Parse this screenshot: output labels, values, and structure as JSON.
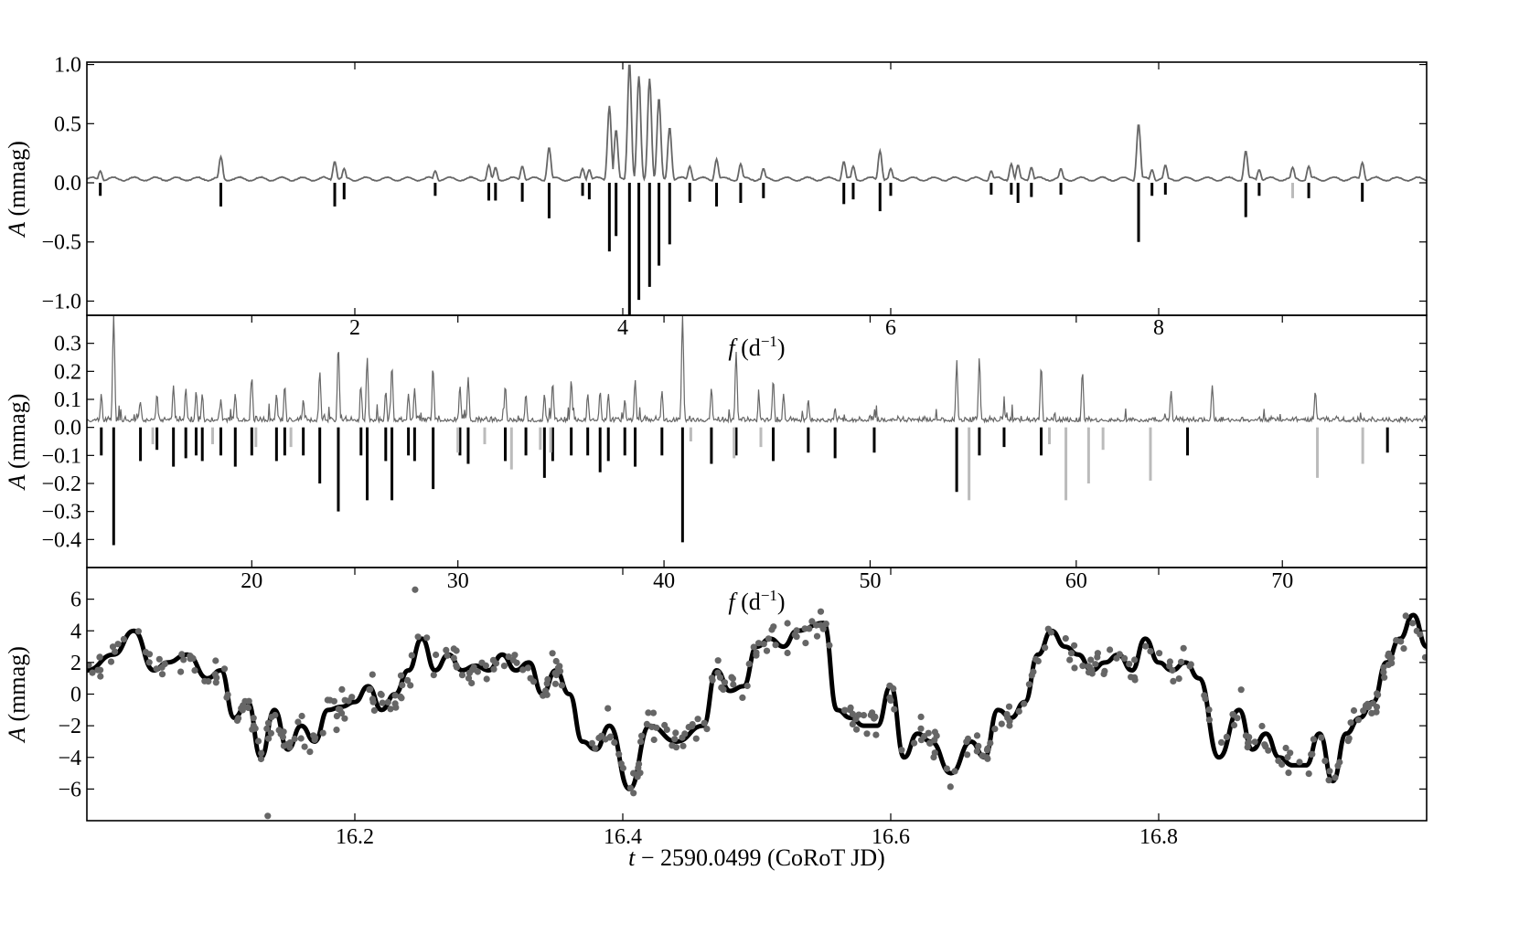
{
  "chart_data": [
    {
      "type": "line",
      "panel": "top",
      "xlabel_math": "f",
      "xlabel_rest": " (d",
      "xlabel_sup": "−1",
      "xlabel_close": ")",
      "ylabel_math": "A",
      "ylabel_rest": " (mmag)",
      "xlim": [
        0,
        10
      ],
      "ylim": [
        -1.12,
        1.02
      ],
      "xticks": [
        2,
        4,
        6,
        8
      ],
      "xtick_labels": [
        "2",
        "4",
        "6",
        "8"
      ],
      "yticks": [
        -1.0,
        -0.5,
        0.0,
        0.5,
        1.0
      ],
      "ytick_labels": [
        "−1.0",
        "−0.5",
        "0.0",
        "0.5",
        "1.0"
      ],
      "series": [
        {
          "kind": "spectrum",
          "color": "#666666",
          "peaks": [
            [
              0.1,
              0.1
            ],
            [
              1.0,
              0.22
            ],
            [
              1.85,
              0.18
            ],
            [
              1.92,
              0.12
            ],
            [
              2.6,
              0.1
            ],
            [
              3.0,
              0.15
            ],
            [
              3.05,
              0.13
            ],
            [
              3.25,
              0.14
            ],
            [
              3.45,
              0.3
            ],
            [
              3.7,
              0.12
            ],
            [
              3.75,
              0.11
            ],
            [
              3.9,
              0.65
            ],
            [
              3.95,
              0.45
            ],
            [
              4.05,
              1.02
            ],
            [
              4.12,
              0.9
            ],
            [
              4.2,
              0.88
            ],
            [
              4.27,
              0.72
            ],
            [
              4.35,
              0.47
            ],
            [
              4.5,
              0.14
            ],
            [
              4.7,
              0.2
            ],
            [
              4.88,
              0.16
            ],
            [
              5.05,
              0.12
            ],
            [
              5.65,
              0.18
            ],
            [
              5.72,
              0.14
            ],
            [
              5.92,
              0.27
            ],
            [
              6.0,
              0.12
            ],
            [
              6.75,
              0.1
            ],
            [
              6.9,
              0.16
            ],
            [
              6.95,
              0.15
            ],
            [
              7.05,
              0.13
            ],
            [
              7.27,
              0.12
            ],
            [
              7.85,
              0.5
            ],
            [
              7.95,
              0.11
            ],
            [
              8.05,
              0.15
            ],
            [
              8.65,
              0.27
            ],
            [
              8.75,
              0.11
            ],
            [
              9.0,
              0.13
            ],
            [
              9.12,
              0.14
            ],
            [
              9.52,
              0.17
            ]
          ]
        },
        {
          "kind": "stems",
          "color": "#000000",
          "x": [
            0.1,
            1.0,
            1.85,
            1.92,
            2.6,
            3.0,
            3.05,
            3.25,
            3.45,
            3.7,
            3.75,
            3.9,
            3.95,
            4.05,
            4.12,
            4.2,
            4.27,
            4.35,
            4.5,
            4.7,
            4.88,
            5.05,
            5.65,
            5.72,
            5.92,
            6.0,
            6.75,
            6.9,
            6.95,
            7.05,
            7.27,
            7.85,
            7.95,
            8.05,
            8.65,
            8.75,
            9.12,
            9.52
          ],
          "y": [
            -0.11,
            -0.2,
            -0.2,
            -0.14,
            -0.11,
            -0.15,
            -0.15,
            -0.16,
            -0.3,
            -0.11,
            -0.14,
            -0.58,
            -0.45,
            -1.12,
            -0.99,
            -0.88,
            -0.7,
            -0.52,
            -0.16,
            -0.2,
            -0.17,
            -0.13,
            -0.18,
            -0.14,
            -0.24,
            -0.11,
            -0.1,
            -0.1,
            -0.17,
            -0.12,
            -0.1,
            -0.5,
            -0.11,
            -0.1,
            -0.29,
            -0.11,
            -0.13,
            -0.16
          ]
        },
        {
          "kind": "stems",
          "color": "#bbbbbb",
          "x": [
            9.0
          ],
          "y": [
            -0.13
          ]
        }
      ]
    },
    {
      "type": "line",
      "panel": "middle",
      "xlabel_math": "f",
      "xlabel_rest": " (d",
      "xlabel_sup": "−1",
      "xlabel_close": ")",
      "ylabel_math": "A",
      "ylabel_rest": " (mmag)",
      "xlim": [
        12,
        77
      ],
      "ylim": [
        -0.5,
        0.4
      ],
      "xticks": [
        20,
        30,
        40,
        50,
        60,
        70
      ],
      "xtick_labels": [
        "20",
        "30",
        "40",
        "50",
        "60",
        "70"
      ],
      "yticks": [
        -0.4,
        -0.3,
        -0.2,
        -0.1,
        0.0,
        0.1,
        0.2,
        0.3
      ],
      "ytick_labels": [
        "−0.4",
        "−0.3",
        "−0.2",
        "−0.1",
        "0.0",
        "0.1",
        "0.2",
        "0.3"
      ],
      "series": [
        {
          "kind": "spectrum",
          "color": "#666666",
          "peaks": [
            [
              12.7,
              0.12
            ],
            [
              13.3,
              0.4
            ],
            [
              14.6,
              0.09
            ],
            [
              15.4,
              0.12
            ],
            [
              16.2,
              0.15
            ],
            [
              16.8,
              0.14
            ],
            [
              17.3,
              0.13
            ],
            [
              17.6,
              0.12
            ],
            [
              18.5,
              0.1
            ],
            [
              19.2,
              0.12
            ],
            [
              20.0,
              0.18
            ],
            [
              21.2,
              0.12
            ],
            [
              21.6,
              0.15
            ],
            [
              22.5,
              0.1
            ],
            [
              23.3,
              0.2
            ],
            [
              24.2,
              0.29
            ],
            [
              25.3,
              0.14
            ],
            [
              25.6,
              0.25
            ],
            [
              26.5,
              0.13
            ],
            [
              26.8,
              0.22
            ],
            [
              27.6,
              0.12
            ],
            [
              27.9,
              0.14
            ],
            [
              28.8,
              0.2
            ],
            [
              30.1,
              0.15
            ],
            [
              30.5,
              0.18
            ],
            [
              32.3,
              0.15
            ],
            [
              33.3,
              0.12
            ],
            [
              34.2,
              0.12
            ],
            [
              34.6,
              0.16
            ],
            [
              35.5,
              0.17
            ],
            [
              36.3,
              0.12
            ],
            [
              36.9,
              0.13
            ],
            [
              37.3,
              0.12
            ],
            [
              38.1,
              0.1
            ],
            [
              38.6,
              0.17
            ],
            [
              39.9,
              0.13
            ],
            [
              40.9,
              0.4
            ],
            [
              42.3,
              0.14
            ],
            [
              43.5,
              0.27
            ],
            [
              44.6,
              0.11
            ],
            [
              45.3,
              0.17
            ],
            [
              45.8,
              0.12
            ],
            [
              47.0,
              0.1
            ],
            [
              48.3,
              0.07
            ],
            [
              54.2,
              0.22
            ],
            [
              55.3,
              0.24
            ],
            [
              56.5,
              0.07
            ],
            [
              58.3,
              0.22
            ],
            [
              60.3,
              0.2
            ],
            [
              64.6,
              0.13
            ],
            [
              66.6,
              0.15
            ],
            [
              71.6,
              0.13
            ]
          ]
        },
        {
          "kind": "stems",
          "color": "#000000",
          "x": [
            12.7,
            13.3,
            14.6,
            15.4,
            16.2,
            16.8,
            17.3,
            17.6,
            18.5,
            19.2,
            20.0,
            21.2,
            21.6,
            22.5,
            23.3,
            24.2,
            25.3,
            25.6,
            26.5,
            26.8,
            27.6,
            27.9,
            28.8,
            30.1,
            30.5,
            32.3,
            33.3,
            34.2,
            34.6,
            35.5,
            36.3,
            36.9,
            37.3,
            38.1,
            38.6,
            39.9,
            40.9,
            42.3,
            43.5,
            45.3,
            47.0,
            48.3,
            50.2,
            54.2,
            55.3,
            56.5,
            58.3,
            65.4,
            75.1
          ],
          "y": [
            -0.1,
            -0.42,
            -0.12,
            -0.08,
            -0.14,
            -0.11,
            -0.1,
            -0.12,
            -0.1,
            -0.14,
            -0.1,
            -0.12,
            -0.1,
            -0.1,
            -0.2,
            -0.3,
            -0.1,
            -0.26,
            -0.12,
            -0.26,
            -0.1,
            -0.12,
            -0.22,
            -0.1,
            -0.13,
            -0.12,
            -0.1,
            -0.18,
            -0.12,
            -0.1,
            -0.1,
            -0.16,
            -0.12,
            -0.1,
            -0.14,
            -0.1,
            -0.41,
            -0.13,
            -0.1,
            -0.12,
            -0.09,
            -0.11,
            -0.09,
            -0.23,
            -0.1,
            -0.07,
            -0.1,
            -0.1,
            -0.09
          ]
        },
        {
          "kind": "stems",
          "color": "#bbbbbb",
          "x": [
            15.2,
            18.1,
            20.2,
            21.9,
            30.0,
            31.3,
            32.6,
            34.0,
            34.5,
            41.3,
            43.4,
            44.7,
            54.8,
            58.7,
            59.5,
            60.6,
            61.3,
            63.6,
            71.7,
            73.9
          ],
          "y": [
            -0.06,
            -0.06,
            -0.07,
            -0.07,
            -0.09,
            -0.06,
            -0.15,
            -0.08,
            -0.09,
            -0.05,
            -0.11,
            -0.07,
            -0.26,
            -0.06,
            -0.26,
            -0.2,
            -0.08,
            -0.19,
            -0.18,
            -0.13
          ]
        }
      ]
    },
    {
      "type": "scatter",
      "panel": "bottom",
      "xlabel_math": "t",
      "xlabel_rest": " − 2590.0499 (CoRoT JD)",
      "ylabel_math": "A",
      "ylabel_rest": " (mmag)",
      "xlim": [
        16.0,
        17.0
      ],
      "ylim": [
        -8,
        8
      ],
      "xticks": [
        16.2,
        16.4,
        16.6,
        16.8
      ],
      "xtick_labels": [
        "16.2",
        "16.4",
        "16.6",
        "16.8"
      ],
      "yticks": [
        -6,
        -4,
        -2,
        0,
        2,
        4,
        6
      ],
      "ytick_labels": [
        "−6",
        "−4",
        "−2",
        "0",
        "2",
        "4",
        "6"
      ],
      "series": [
        {
          "kind": "model",
          "color": "#000000",
          "x": [
            16.0,
            16.02,
            16.035,
            16.05,
            16.06,
            16.075,
            16.09,
            16.1,
            16.11,
            16.12,
            16.13,
            16.14,
            16.15,
            16.16,
            16.17,
            16.18,
            16.19,
            16.2,
            16.21,
            16.22,
            16.23,
            16.24,
            16.25,
            16.26,
            16.27,
            16.28,
            16.29,
            16.3,
            16.31,
            16.32,
            16.33,
            16.34,
            16.35,
            16.36,
            16.37,
            16.38,
            16.39,
            16.405,
            16.42,
            16.44,
            16.46,
            16.47,
            16.48,
            16.49,
            16.5,
            16.51,
            16.52,
            16.53,
            16.55,
            16.56,
            16.57,
            16.58,
            16.59,
            16.6,
            16.61,
            16.62,
            16.63,
            16.645,
            16.66,
            16.67,
            16.68,
            16.69,
            16.7,
            16.71,
            16.72,
            16.73,
            16.74,
            16.75,
            16.76,
            16.77,
            16.78,
            16.79,
            16.8,
            16.81,
            16.82,
            16.83,
            16.845,
            16.86,
            16.87,
            16.88,
            16.89,
            16.9,
            16.91,
            16.92,
            16.93,
            16.94,
            16.95,
            16.96,
            16.97,
            16.98,
            16.99,
            17.0
          ],
          "y": [
            1.5,
            2.5,
            4.0,
            1.5,
            2.0,
            2.5,
            1.0,
            1.5,
            -1.5,
            -0.5,
            -4.0,
            -1.0,
            -3.5,
            -2.0,
            -3.0,
            -1.0,
            -0.8,
            -0.5,
            0.5,
            -1.0,
            0.0,
            1.5,
            3.5,
            1.5,
            2.5,
            1.5,
            1.8,
            1.5,
            2.5,
            1.5,
            2.0,
            0.0,
            1.5,
            0.0,
            -3.0,
            -3.5,
            -2.0,
            -6.0,
            -2.0,
            -3.0,
            -2.0,
            1.5,
            0.2,
            0.5,
            3.0,
            3.5,
            3.0,
            4.0,
            4.5,
            -1.0,
            -1.5,
            -2.0,
            -2.0,
            0.5,
            -4.0,
            -2.5,
            -3.0,
            -5.0,
            -3.0,
            -4.0,
            -1.0,
            -1.5,
            -0.5,
            2.5,
            4.0,
            3.0,
            2.5,
            1.5,
            2.0,
            2.5,
            1.5,
            3.5,
            2.0,
            1.5,
            2.0,
            1.0,
            -4.0,
            -1.0,
            -3.5,
            -2.5,
            -4.0,
            -4.5,
            -4.5,
            -2.5,
            -5.5,
            -2.5,
            -1.5,
            -0.5,
            2.0,
            3.5,
            5.0,
            3.0
          ]
        },
        {
          "kind": "points",
          "color": "#666666",
          "noise": 0.9,
          "count": 420,
          "outliers": [
            [
              16.135,
              -7.7
            ],
            [
              16.245,
              6.6
            ],
            [
              16.285,
              1.0
            ]
          ]
        }
      ]
    }
  ]
}
